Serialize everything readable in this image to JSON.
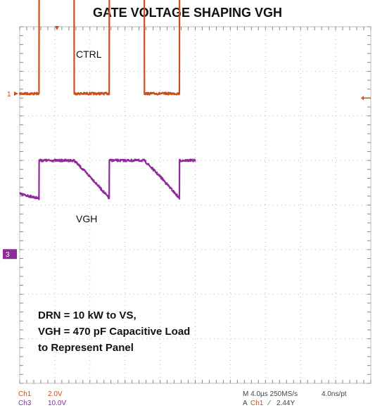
{
  "title": "GATE VOLTAGE SHAPING VGH",
  "channel_labels": {
    "ch1_trace": "CTRL",
    "ch3_trace": "VGH"
  },
  "markers": {
    "ch1": "1",
    "ch3": "3"
  },
  "annotation": {
    "line1": "DRN = 10 kW to VS,",
    "line2": "VGH = 470 pF Capacitive Load",
    "line3": "to Represent Panel"
  },
  "status_bar": {
    "ch1_name": "Ch1",
    "ch1_scale": "2.0V",
    "ch3_name": "Ch3",
    "ch3_scale": "10.0V",
    "timebase": "M 4.0µs 250MS/s",
    "resolution": "4.0ns/pt",
    "trigger_mode": "A",
    "trigger_source": "Ch1",
    "trigger_slope": "⁄",
    "trigger_level": "2.44Y"
  },
  "colors": {
    "ch1": "#c8501e",
    "ch3": "#8e2a9a",
    "grid": "#bbbbbb",
    "background": "#ffffff"
  },
  "chart_data": {
    "type": "line",
    "title": "GATE VOLTAGE SHAPING VGH",
    "x_unit": "µs",
    "x_divisions": 10,
    "y_divisions": 8,
    "time_per_div_us": 4.0,
    "grid": true,
    "series": [
      {
        "name": "CTRL",
        "channel": "Ch1",
        "volts_per_div": 2.0,
        "zero_level_div": 2.5,
        "x": [
          0,
          2.2,
          2.21,
          6.2,
          6.21,
          10.2,
          10.21,
          14.2,
          14.21,
          18.2,
          18.21,
          20.0
        ],
        "y": [
          0,
          0,
          5.0,
          5.0,
          0,
          0,
          5.0,
          5.0,
          0,
          0,
          5.0,
          5.0
        ]
      },
      {
        "name": "VGH",
        "channel": "Ch3",
        "volts_per_div": 10.0,
        "zero_level_div": -1.1,
        "x": [
          0,
          2.2,
          2.21,
          6.2,
          8.2,
          10.2,
          10.21,
          14.2,
          16.2,
          18.2,
          18.21,
          20.0
        ],
        "y": [
          13.5,
          12.5,
          21.0,
          21.0,
          17.0,
          12.5,
          21.0,
          21.0,
          17.0,
          12.5,
          21.0,
          21.0
        ]
      }
    ]
  }
}
